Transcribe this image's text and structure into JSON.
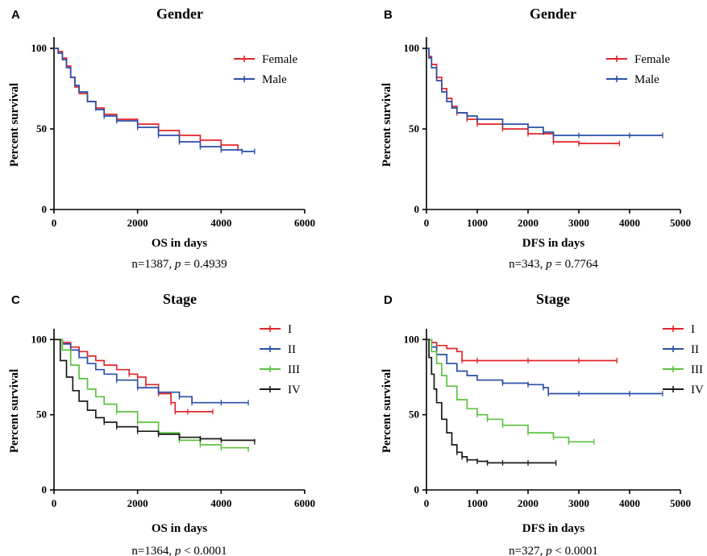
{
  "colors": {
    "red": "#e0262c",
    "blue": "#2a4fa8",
    "green": "#5cc23f",
    "black": "#1a1a1a"
  },
  "chart_data": [
    {
      "letter": "A",
      "type": "line",
      "title": "Gender",
      "xlabel": "OS in days",
      "ylabel": "Percent survival",
      "xlim": [
        0,
        6000
      ],
      "ylim": [
        0,
        105
      ],
      "xticks": [
        0,
        2000,
        4000,
        6000
      ],
      "yticks": [
        0,
        50,
        100
      ],
      "caption": {
        "pre": "n=1387, ",
        "p": "p",
        "post": " = 0.4939"
      },
      "series": [
        {
          "name": "Female",
          "color": "red",
          "x": [
            0,
            100,
            200,
            300,
            400,
            500,
            600,
            800,
            1000,
            1200,
            1500,
            2000,
            2500,
            3000,
            3500,
            4000,
            4400
          ],
          "y": [
            100,
            98,
            94,
            89,
            82,
            76,
            72,
            67,
            63,
            59,
            56,
            53,
            49,
            46,
            43,
            40,
            38
          ]
        },
        {
          "name": "Male",
          "color": "blue",
          "x": [
            0,
            100,
            200,
            300,
            400,
            500,
            600,
            800,
            1000,
            1200,
            1500,
            2000,
            2500,
            3000,
            3500,
            4000,
            4500,
            4800
          ],
          "y": [
            100,
            97,
            93,
            88,
            82,
            77,
            73,
            67,
            62,
            58,
            55,
            51,
            46,
            42,
            39,
            37,
            36,
            36
          ]
        }
      ]
    },
    {
      "letter": "B",
      "type": "line",
      "title": "Gender",
      "xlabel": "DFS in days",
      "ylabel": "Percent survival",
      "xlim": [
        0,
        5000
      ],
      "ylim": [
        0,
        105
      ],
      "xticks": [
        0,
        1000,
        2000,
        3000,
        4000,
        5000
      ],
      "yticks": [
        0,
        50,
        100
      ],
      "caption": {
        "pre": "n=343, ",
        "p": "p",
        "post": " = 0.7764"
      },
      "series": [
        {
          "name": "Female",
          "color": "red",
          "x": [
            0,
            50,
            100,
            200,
            300,
            400,
            500,
            600,
            800,
            1000,
            1500,
            2000,
            2500,
            3000,
            3800
          ],
          "y": [
            100,
            95,
            90,
            82,
            75,
            69,
            64,
            60,
            56,
            53,
            50,
            47,
            42,
            41,
            41
          ]
        },
        {
          "name": "Male",
          "color": "blue",
          "x": [
            0,
            50,
            100,
            200,
            300,
            400,
            500,
            600,
            800,
            1000,
            1500,
            2000,
            2300,
            2500,
            3000,
            4000,
            4650
          ],
          "y": [
            100,
            94,
            88,
            80,
            73,
            67,
            63,
            60,
            58,
            56,
            53,
            51,
            48,
            46,
            46,
            46,
            46
          ]
        }
      ]
    },
    {
      "letter": "C",
      "type": "line",
      "title": "Stage",
      "xlabel": "OS in days",
      "ylabel": "Percent survival",
      "xlim": [
        0,
        6000
      ],
      "ylim": [
        0,
        105
      ],
      "xticks": [
        0,
        2000,
        4000,
        6000
      ],
      "yticks": [
        0,
        50,
        100
      ],
      "caption": {
        "pre": "n=1364, ",
        "p": "p",
        "post": " < 0.0001"
      },
      "series": [
        {
          "name": "I",
          "color": "red",
          "x": [
            0,
            200,
            400,
            600,
            800,
            1000,
            1200,
            1500,
            1800,
            2000,
            2200,
            2500,
            2800,
            2900,
            3200,
            3800
          ],
          "y": [
            100,
            98,
            95,
            92,
            89,
            86,
            83,
            80,
            77,
            75,
            70,
            64,
            58,
            52,
            52,
            52
          ]
        },
        {
          "name": "II",
          "color": "blue",
          "x": [
            0,
            200,
            400,
            600,
            800,
            1000,
            1200,
            1500,
            2000,
            2500,
            3000,
            3300,
            4000,
            4650
          ],
          "y": [
            100,
            97,
            93,
            88,
            84,
            80,
            77,
            73,
            68,
            65,
            62,
            58,
            58,
            58
          ]
        },
        {
          "name": "III",
          "color": "green",
          "x": [
            0,
            200,
            400,
            600,
            800,
            1000,
            1200,
            1500,
            2000,
            2500,
            3000,
            3500,
            4000,
            4650
          ],
          "y": [
            100,
            93,
            83,
            74,
            67,
            62,
            57,
            52,
            45,
            38,
            33,
            30,
            28,
            27
          ]
        },
        {
          "name": "IV",
          "color": "black",
          "x": [
            0,
            150,
            300,
            450,
            600,
            800,
            1000,
            1200,
            1500,
            2000,
            2500,
            3000,
            3500,
            4000,
            4800
          ],
          "y": [
            100,
            86,
            75,
            66,
            59,
            53,
            48,
            45,
            42,
            39,
            37,
            35,
            34,
            33,
            32
          ]
        }
      ]
    },
    {
      "letter": "D",
      "type": "line",
      "title": "Stage",
      "xlabel": "DFS in days",
      "ylabel": "Percent survival",
      "xlim": [
        0,
        5000
      ],
      "ylim": [
        0,
        105
      ],
      "xticks": [
        0,
        1000,
        2000,
        3000,
        4000,
        5000
      ],
      "yticks": [
        0,
        50,
        100
      ],
      "caption": {
        "pre": "n=327, ",
        "p": "p",
        "post": " < 0.0001"
      },
      "series": [
        {
          "name": "I",
          "color": "red",
          "x": [
            0,
            100,
            200,
            400,
            600,
            700,
            1000,
            2000,
            3000,
            3750
          ],
          "y": [
            100,
            98,
            96,
            94,
            92,
            86,
            86,
            86,
            86,
            86
          ]
        },
        {
          "name": "II",
          "color": "blue",
          "x": [
            0,
            100,
            200,
            400,
            600,
            800,
            1000,
            1500,
            2000,
            2300,
            2400,
            3000,
            4000,
            4650
          ],
          "y": [
            100,
            95,
            90,
            84,
            79,
            76,
            73,
            71,
            70,
            68,
            64,
            64,
            64,
            64
          ]
        },
        {
          "name": "III",
          "color": "green",
          "x": [
            0,
            100,
            200,
            300,
            400,
            600,
            800,
            1000,
            1200,
            1500,
            2000,
            2500,
            2800,
            3300
          ],
          "y": [
            100,
            92,
            84,
            76,
            69,
            60,
            54,
            50,
            47,
            43,
            38,
            35,
            32,
            32
          ]
        },
        {
          "name": "IV",
          "color": "black",
          "x": [
            0,
            50,
            100,
            150,
            200,
            300,
            400,
            500,
            600,
            700,
            800,
            1000,
            1200,
            1500,
            2000,
            2550
          ],
          "y": [
            100,
            88,
            77,
            67,
            58,
            47,
            38,
            30,
            25,
            22,
            20,
            19,
            18,
            18,
            18,
            18
          ]
        }
      ]
    }
  ]
}
